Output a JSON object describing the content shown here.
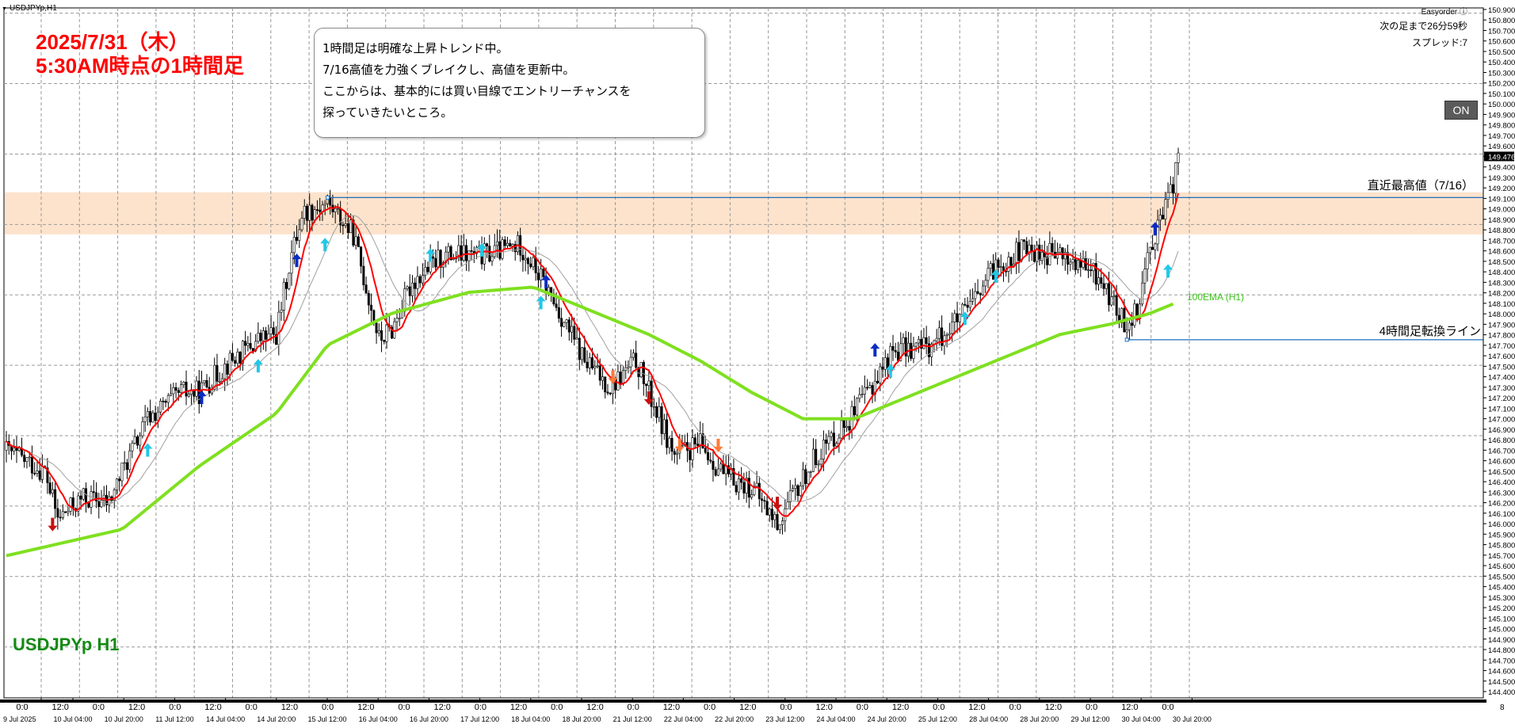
{
  "symbol_tab": "USDJPYp,H1",
  "titles": {
    "date": "2025/7/31（木）",
    "subtitle": "5:30AM時点の1時間足"
  },
  "note": {
    "lines": [
      "1時間足は明確な上昇トレンド中。",
      "7/16高値を力強くブレイクし、高値を更新中。",
      "ここからは、基本的には買い目線でエントリーチャンスを",
      "探っていきたいところ。"
    ]
  },
  "panel": {
    "easyorder": "Easyorder ⓘ",
    "countdown": "次の足まで26分59秒",
    "spread": "スプレッド:7",
    "on_button": "ON"
  },
  "annotations": {
    "recent_high": "直近最高値（7/16）",
    "four_hour_line": "4時間足転換ライン",
    "ema_label": "100EMA (H1)",
    "watermark": "USDJPYp H1"
  },
  "colors": {
    "candles": "#000000",
    "ma_fast": "#ff0000",
    "ma_slow": "#a0a0a0",
    "ema100": "#7fe020",
    "resistance_zone": "#fde3cc",
    "horizontal_lines": "#1e6fbf",
    "grid": "#9a9a9a",
    "title_text": "#ff0000",
    "arrow_up_dark": "#0b2cc4",
    "arrow_up_light": "#20c8e8",
    "arrow_down_dark": "#c81010",
    "arrow_down_light": "#ff7a3a"
  },
  "chart_data": {
    "type": "candlestick",
    "symbol": "USDJPYp",
    "timeframe": "H1",
    "ylim": [
      144.4,
      150.95
    ],
    "y_ticks": [
      "150.900",
      "150.800",
      "150.700",
      "150.600",
      "150.500",
      "150.400",
      "150.300",
      "150.200",
      "150.100",
      "150.000",
      "149.900",
      "149.800",
      "149.700",
      "149.600",
      "149.476",
      "149.400",
      "149.300",
      "149.200",
      "149.100",
      "149.000",
      "148.900",
      "148.800",
      "148.700",
      "148.600",
      "148.500",
      "148.400",
      "148.300",
      "148.200",
      "148.100",
      "148.000",
      "147.900",
      "147.800",
      "147.700",
      "147.600",
      "147.500",
      "147.400",
      "147.300",
      "147.200",
      "147.100",
      "147.000",
      "146.900",
      "146.800",
      "146.700",
      "146.600",
      "146.500",
      "146.400",
      "146.300",
      "146.200",
      "146.100",
      "146.000",
      "145.900",
      "145.800",
      "145.700",
      "145.600",
      "145.500",
      "145.400",
      "145.300",
      "145.200",
      "145.100",
      "145.000",
      "144.900",
      "144.800",
      "144.700",
      "144.600",
      "144.500",
      "144.400"
    ],
    "current_price": "149.476",
    "x_ticks_time": [
      "0:0",
      "12:0",
      "0:0",
      "12:0",
      "0:0",
      "12:0",
      "0:0",
      "12:0",
      "0:0",
      "12:0",
      "0:0",
      "12:0",
      "0:0",
      "12:0",
      "0:0",
      "12:0",
      "0:0",
      "12:0",
      "0:0",
      "12:0",
      "0:0",
      "12:0",
      "0:0",
      "12:0",
      "0:0",
      "12:0",
      "0:0",
      "12:0",
      "0:0",
      "12:0",
      "0:0"
    ],
    "x_ticks_date": [
      "9 Jul 2025",
      "10 Jul 04:00",
      "10 Jul 20:00",
      "11 Jul 12:00",
      "14 Jul 04:00",
      "14 Jul 20:00",
      "15 Jul 12:00",
      "16 Jul 04:00",
      "16 Jul 20:00",
      "17 Jul 12:00",
      "18 Jul 04:00",
      "18 Jul 20:00",
      "21 Jul 12:00",
      "22 Jul 04:00",
      "22 Jul 20:00",
      "23 Jul 12:00",
      "24 Jul 04:00",
      "24 Jul 20:00",
      "25 Jul 12:00",
      "28 Jul 04:00",
      "28 Jul 20:00",
      "29 Jul 12:00",
      "30 Jul 04:00",
      "30 Jul 20:00"
    ],
    "axis_right_label": "8",
    "price_path": [
      [
        0,
        146.75
      ],
      [
        15,
        146.55
      ],
      [
        20,
        146.1
      ],
      [
        30,
        146.3
      ],
      [
        40,
        146.25
      ],
      [
        45,
        146.55
      ],
      [
        55,
        147.05
      ],
      [
        68,
        147.3
      ],
      [
        75,
        147.3
      ],
      [
        85,
        147.55
      ],
      [
        98,
        147.8
      ],
      [
        105,
        147.85
      ],
      [
        110,
        148.5
      ],
      [
        115,
        149.0
      ],
      [
        125,
        149.1
      ],
      [
        135,
        148.8
      ],
      [
        145,
        147.8
      ],
      [
        150,
        147.9
      ],
      [
        158,
        148.35
      ],
      [
        170,
        148.6
      ],
      [
        185,
        148.6
      ],
      [
        200,
        148.7
      ],
      [
        210,
        148.3
      ],
      [
        225,
        147.6
      ],
      [
        235,
        147.35
      ],
      [
        245,
        147.6
      ],
      [
        250,
        147.3
      ],
      [
        260,
        146.7
      ],
      [
        270,
        146.8
      ],
      [
        280,
        146.5
      ],
      [
        290,
        146.4
      ],
      [
        300,
        146.05
      ],
      [
        315,
        146.7
      ],
      [
        330,
        147.1
      ],
      [
        345,
        147.7
      ],
      [
        360,
        147.75
      ],
      [
        375,
        148.1
      ],
      [
        385,
        148.5
      ],
      [
        395,
        148.65
      ],
      [
        410,
        148.6
      ],
      [
        425,
        148.4
      ],
      [
        435,
        147.95
      ],
      [
        440,
        148.1
      ],
      [
        445,
        148.7
      ],
      [
        452,
        149.1
      ],
      [
        456,
        149.5
      ]
    ],
    "series": [
      {
        "name": "100EMA (H1)",
        "values": [
          [
            0,
            145.75
          ],
          [
            45,
            146.0
          ],
          [
            75,
            146.6
          ],
          [
            105,
            147.1
          ],
          [
            125,
            147.75
          ],
          [
            150,
            148.05
          ],
          [
            180,
            148.25
          ],
          [
            205,
            148.3
          ],
          [
            230,
            148.05
          ],
          [
            250,
            147.85
          ],
          [
            270,
            147.6
          ],
          [
            290,
            147.3
          ],
          [
            310,
            147.05
          ],
          [
            330,
            147.05
          ],
          [
            345,
            147.2
          ],
          [
            365,
            147.4
          ],
          [
            390,
            147.65
          ],
          [
            410,
            147.85
          ],
          [
            430,
            147.95
          ],
          [
            445,
            148.05
          ],
          [
            455,
            148.15
          ]
        ]
      }
    ],
    "levels": [
      {
        "label": "直近最高値（7/16）",
        "value": 149.15,
        "from_index": 125
      },
      {
        "label": "4時間足転換ライン",
        "value": 147.8,
        "from_index": 436
      }
    ],
    "zone": {
      "from": 148.8,
      "to": 149.2
    },
    "signals": [
      {
        "i": 18,
        "type": "down-dark",
        "price": 146.05
      },
      {
        "i": 55,
        "type": "up-light",
        "price": 146.75
      },
      {
        "i": 76,
        "type": "up-dark",
        "price": 147.25
      },
      {
        "i": 98,
        "type": "up-light",
        "price": 147.55
      },
      {
        "i": 113,
        "type": "up-dark",
        "price": 148.55
      },
      {
        "i": 124,
        "type": "up-light",
        "price": 148.7
      },
      {
        "i": 165,
        "type": "up-light",
        "price": 148.6
      },
      {
        "i": 185,
        "type": "up-light",
        "price": 148.65
      },
      {
        "i": 208,
        "type": "up-light",
        "price": 148.15
      },
      {
        "i": 210,
        "type": "up-dark",
        "price": 148.35
      },
      {
        "i": 236,
        "type": "down-light",
        "price": 147.45
      },
      {
        "i": 250,
        "type": "down-dark",
        "price": 147.25
      },
      {
        "i": 262,
        "type": "down-light",
        "price": 146.8
      },
      {
        "i": 277,
        "type": "down-light",
        "price": 146.8
      },
      {
        "i": 300,
        "type": "down-dark",
        "price": 146.25
      },
      {
        "i": 338,
        "type": "up-dark",
        "price": 147.7
      },
      {
        "i": 344,
        "type": "up-light",
        "price": 147.5
      },
      {
        "i": 373,
        "type": "up-light",
        "price": 148.0
      },
      {
        "i": 385,
        "type": "up-light",
        "price": 148.4
      },
      {
        "i": 447,
        "type": "up-dark",
        "price": 148.85
      },
      {
        "i": 452,
        "type": "up-light",
        "price": 148.45
      }
    ]
  }
}
